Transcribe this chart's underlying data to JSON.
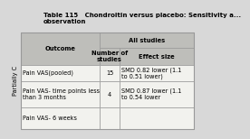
{
  "title": "Table 115   Chondroitin versus placebo: Sensitivity a...\nobservation",
  "col_header_1": "Outcome",
  "col_group": "All studies",
  "col_header_2": "Number of\nstudies",
  "col_header_3": "Effect size",
  "rows": [
    [
      "Pain VAS(pooled)",
      "15",
      "SMD 0.82 lower (1.1\nto 0.51 lower)"
    ],
    [
      "Pain VAS- time points less\nthan 3 months",
      "4",
      "SMD 0.87 lower (1.1\nto 0.54 lower"
    ],
    [
      "Pain VAS- 6 weeks",
      "",
      ""
    ]
  ],
  "side_label": "Partially C",
  "bg_color": "#d8d8d8",
  "table_bg": "#f2f2ee",
  "header_bg": "#bebeba",
  "border_color": "#999999",
  "title_fontsize": 5.0,
  "header_fontsize": 4.9,
  "cell_fontsize": 4.7
}
